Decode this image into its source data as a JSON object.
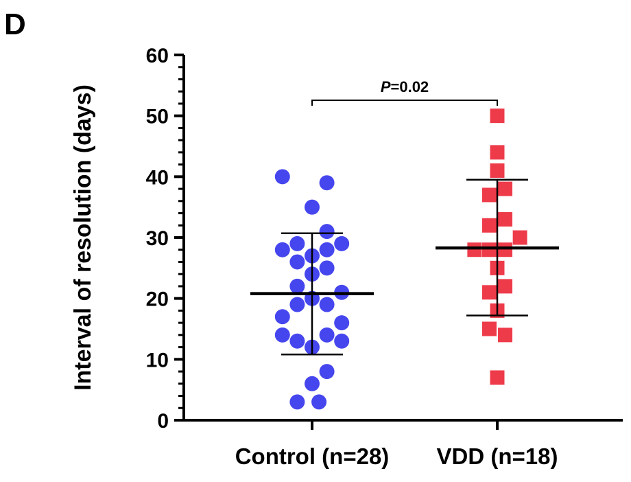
{
  "panel_label": "D",
  "chart_data": {
    "type": "scatter",
    "title": "",
    "xlabel": "",
    "ylabel": "Interval of resolution (days)",
    "ylim": [
      0,
      60
    ],
    "yticks": [
      0,
      10,
      20,
      30,
      40,
      50,
      60
    ],
    "categories": [
      "Control (n=28)",
      "VDD (n=18)"
    ],
    "series": [
      {
        "name": "Control (n=28)",
        "color": "#4646ee",
        "marker": "circle",
        "points": [
          {
            "dx": -0.3,
            "y": 40
          },
          {
            "dx": 0.15,
            "y": 39
          },
          {
            "dx": 0.0,
            "y": 35
          },
          {
            "dx": 0.15,
            "y": 31
          },
          {
            "dx": -0.15,
            "y": 29
          },
          {
            "dx": 0.3,
            "y": 29
          },
          {
            "dx": -0.3,
            "y": 28
          },
          {
            "dx": 0.15,
            "y": 28
          },
          {
            "dx": 0.0,
            "y": 27
          },
          {
            "dx": -0.15,
            "y": 26
          },
          {
            "dx": 0.15,
            "y": 25
          },
          {
            "dx": 0.0,
            "y": 24
          },
          {
            "dx": -0.15,
            "y": 22
          },
          {
            "dx": 0.3,
            "y": 21
          },
          {
            "dx": 0.0,
            "y": 20
          },
          {
            "dx": -0.15,
            "y": 19
          },
          {
            "dx": 0.15,
            "y": 19
          },
          {
            "dx": -0.3,
            "y": 17
          },
          {
            "dx": 0.3,
            "y": 16
          },
          {
            "dx": -0.3,
            "y": 14
          },
          {
            "dx": 0.15,
            "y": 14
          },
          {
            "dx": -0.15,
            "y": 13
          },
          {
            "dx": 0.3,
            "y": 13
          },
          {
            "dx": 0.0,
            "y": 12
          },
          {
            "dx": 0.15,
            "y": 8
          },
          {
            "dx": 0.0,
            "y": 6
          },
          {
            "dx": -0.15,
            "y": 3
          },
          {
            "dx": 0.07,
            "y": 3
          }
        ],
        "mean": 20.8,
        "sd_lower": 10.8,
        "sd_upper": 30.7
      },
      {
        "name": "VDD (n=18)",
        "color": "#ee3b4a",
        "marker": "square",
        "points": [
          {
            "dx": 0.0,
            "y": 50
          },
          {
            "dx": 0.0,
            "y": 44
          },
          {
            "dx": 0.0,
            "y": 41
          },
          {
            "dx": 0.08,
            "y": 38
          },
          {
            "dx": -0.08,
            "y": 37
          },
          {
            "dx": 0.08,
            "y": 33
          },
          {
            "dx": -0.08,
            "y": 32
          },
          {
            "dx": 0.23,
            "y": 30
          },
          {
            "dx": -0.23,
            "y": 28
          },
          {
            "dx": -0.08,
            "y": 28
          },
          {
            "dx": 0.08,
            "y": 28
          },
          {
            "dx": 0.0,
            "y": 25
          },
          {
            "dx": 0.08,
            "y": 22
          },
          {
            "dx": -0.08,
            "y": 21
          },
          {
            "dx": 0.0,
            "y": 18
          },
          {
            "dx": -0.08,
            "y": 15
          },
          {
            "dx": 0.08,
            "y": 14
          },
          {
            "dx": 0.0,
            "y": 7
          }
        ],
        "mean": 28.3,
        "sd_lower": 17.2,
        "sd_upper": 39.5
      }
    ],
    "annotations": [
      {
        "type": "significance-bracket",
        "from": "Control (n=28)",
        "to": "VDD (n=18)",
        "y": 52.5,
        "label_italic": "P",
        "label_rest": "=0.02"
      }
    ]
  }
}
